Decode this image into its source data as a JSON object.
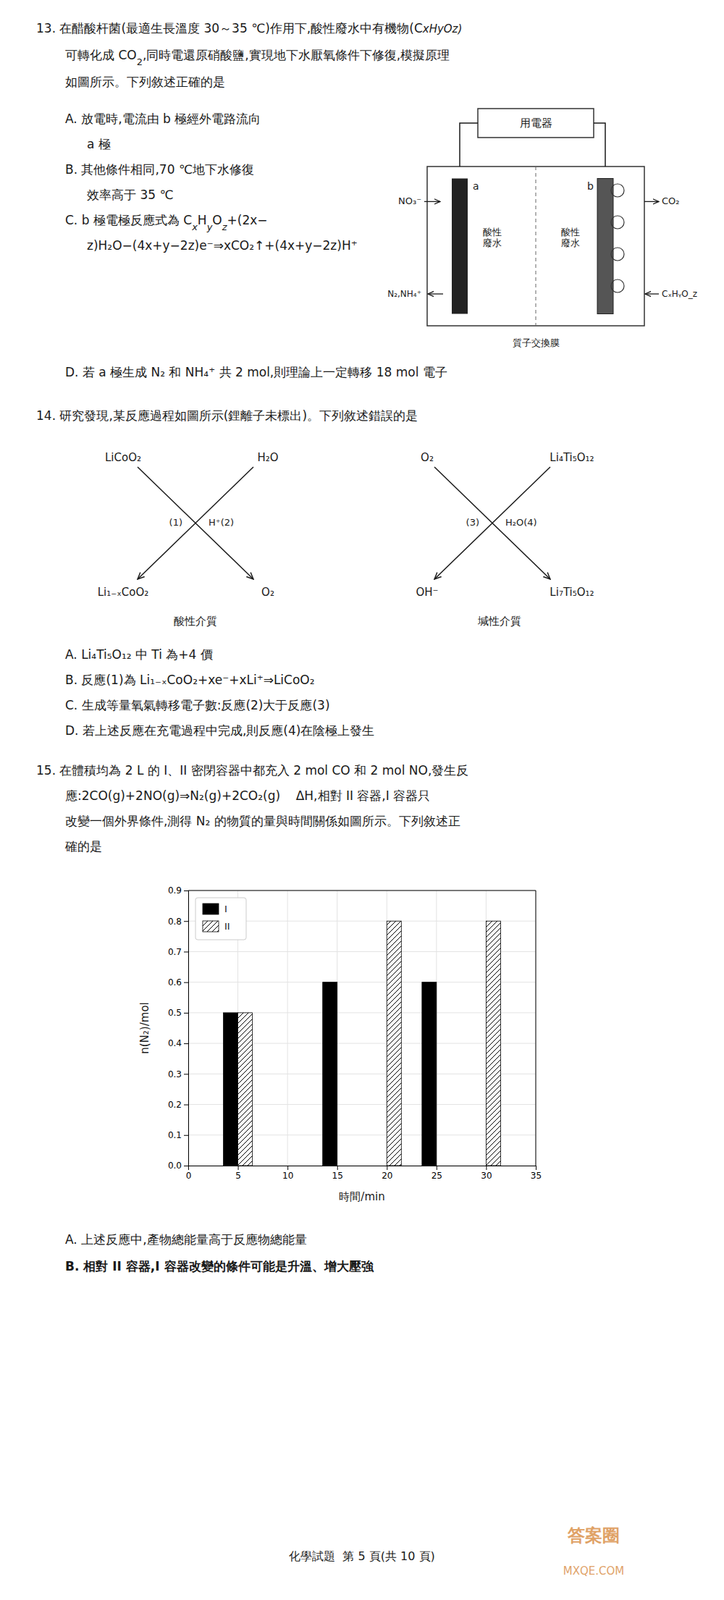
{
  "chart_data": {
    "type": "bar",
    "annotations": [
      "13. 在醋酸杆菌(最適生長溫度 30～35 ℃)作用下,酸性廢水中有機物(C",
      "xHyOz)",
      "可轉化成 CO",
      "2",
      ",同時電還原硝酸鹽,實現地下水厭氧條件下修復,模擬原理",
      "如圖所示。下列敘述正確的是",
      "用電器",
      "a",
      "b",
      "酸性\n廢水",
      "酸性\n廢水",
      "NO₃⁻",
      "N₂,NH₄⁺",
      "CO₂",
      "CₓHᵧO_z",
      "質子交換膜",
      "A. 放電時,電流由 b 極經外電路流向",
      "a 極",
      "B. 其他條件相同,70 ℃地下水修復",
      "效率高于 35 ℃",
      "C. b 極電極反應式為 C",
      "x",
      "H",
      "y",
      "O",
      "z",
      "+(2x−",
      "z)H₂O−(4x+y−2z)e⁻⇒xCO₂↑+(4x+y−2z)H⁺",
      "D. 若 a 極生成 N₂ 和 NH₄⁺ 共 2 mol,則理論上一定轉移 18 mol 電子",
      "14. 研究發現,某反應過程如圖所示(鋰離子未標出)。下列敘述錯誤的是",
      "LiCoO₂",
      "H₂O",
      "(1)",
      "H⁺(2)",
      "Li₁₋ₓCoO₂",
      "O₂",
      "酸性介質",
      "O₂",
      "Li₄Ti₅O₁₂",
      "(3)",
      "H₂O(4)",
      "OH⁻",
      "Li₇Ti₅O₁₂",
      "堿性介質",
      "A. Li₄Ti₅O₁₂ 中 Ti 為+4 價",
      "B. 反應(1)為 Li₁₋ₓCoO₂+xe⁻+xLi⁺⇒LiCoO₂",
      "C. 生成等量氧氣轉移電子數:反應(2)大于反應(3)",
      "D. 若上述反應在充電過程中完成,則反應(4)在陰極上發生",
      "15. 在體積均為 2 L 的 I、II 密閉容器中都充入 2 mol CO 和 2 mol NO,發生反",
      "應:2CO(g)+2NO(g)⇒N₂(g)+2CO₂(g)    ΔH,相對 II 容器,I 容器只",
      "改變一個外界條件,測得 N₂ 的物質的量與時間關係如圖所示。下列敘述正",
      "確的是",
      "A. 上述反應中,產物總能量高于反應物總能量",
      "B. 相對 II 容器,I 容器改變的條件可能是升溫、增大壓強",
      "化學試題  第 5 頁(共 10 頁)",
      "答案圈",
      "MXQE.COM"
    ],
    "series": [
      {
        "name": "I",
        "color": "#000000",
        "x": [
          5,
          15,
          25
        ],
        "values": [
          0.5,
          0.6,
          0.6
        ]
      },
      {
        "name": "II",
        "color": "#ffffff",
        "x": [
          5,
          20,
          30
        ],
        "values": [
          0.5,
          0.8,
          0.8
        ]
      }
    ],
    "xlim": [
      0,
      35
    ],
    "ylim": [
      0.0,
      0.9
    ],
    "xticks": [
      0,
      5,
      10,
      15,
      20,
      25,
      30,
      35
    ],
    "yticks": [
      {
        "value": 0.0,
        "label": "0.0"
      },
      0.1,
      0.2,
      0.3,
      0.4,
      0.5,
      0.6,
      0.7,
      0.8,
      0.9
    ],
    "xlabel": "時間/min",
    "ylabel": "n(N₂)/mol",
    "grid": true,
    "legend": "upper left"
  }
}
